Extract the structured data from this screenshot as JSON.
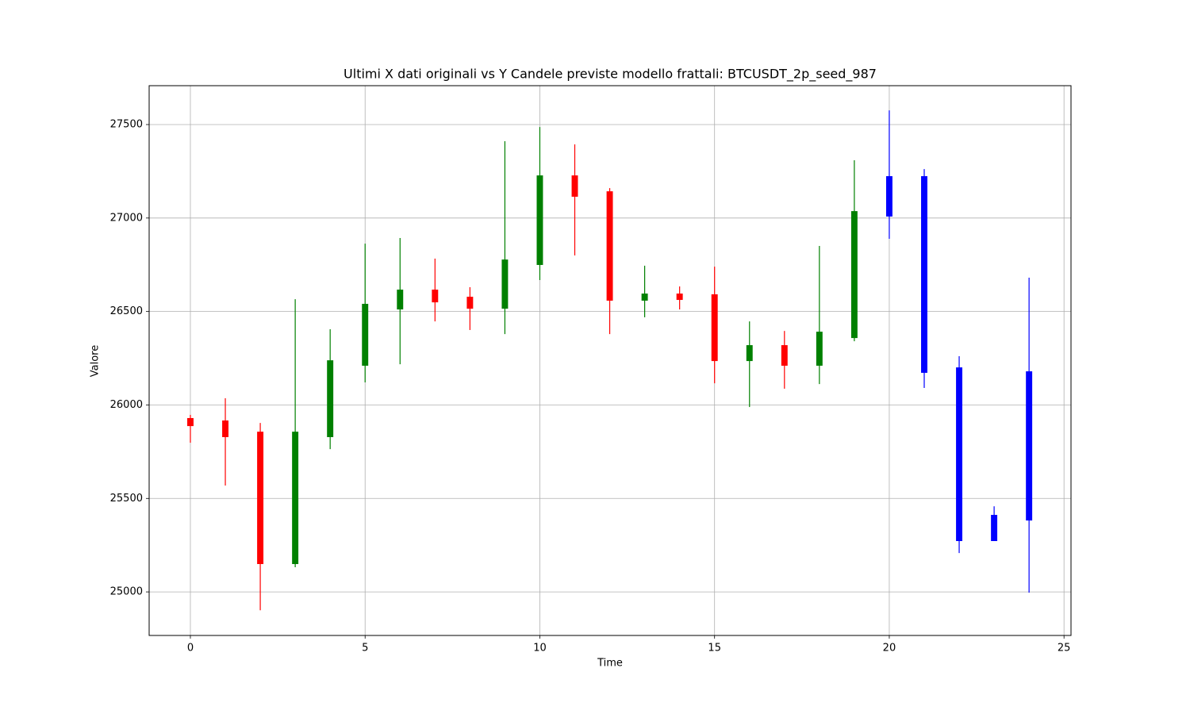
{
  "chart_data": {
    "type": "candlestick",
    "title": "Ultimi X dati originali vs Y Candele previste modello frattali: BTCUSDT_2p_seed_987",
    "x_label": "Time",
    "y_label": "Valore",
    "x": [
      0,
      1,
      2,
      3,
      4,
      5,
      6,
      7,
      8,
      9,
      10,
      11,
      12,
      13,
      14,
      15,
      16,
      17,
      18,
      19,
      20,
      21,
      22,
      23,
      24
    ],
    "open": [
      25930,
      25917,
      25857,
      25149,
      25828,
      26210,
      26511,
      26617,
      26579,
      26515,
      26749,
      27228,
      27143,
      26558,
      26596,
      26592,
      26235,
      26320,
      26210,
      26358,
      27008,
      27224,
      26201,
      25412,
      25382
    ],
    "high": [
      25947,
      26036,
      25904,
      26566,
      26405,
      26863,
      26893,
      26783,
      26630,
      27411,
      27487,
      27394,
      27160,
      26745,
      26634,
      26740,
      26447,
      26396,
      26851,
      27309,
      27576,
      27262,
      26261,
      25458,
      26681
    ],
    "low": [
      25798,
      25569,
      24902,
      25132,
      25764,
      26121,
      26218,
      26447,
      26401,
      26379,
      26668,
      26800,
      26379,
      26469,
      26511,
      26116,
      25989,
      26087,
      26112,
      26341,
      26889,
      26091,
      25208,
      25272,
      24996
    ],
    "close": [
      25887,
      25828,
      25149,
      25857,
      26239,
      26541,
      26617,
      26549,
      26515,
      26778,
      27228,
      27114,
      26558,
      26596,
      26562,
      26235,
      26320,
      26210,
      26392,
      27037,
      27224,
      26172,
      25272,
      25272,
      26180
    ],
    "colors": [
      "red",
      "red",
      "red",
      "green",
      "green",
      "green",
      "green",
      "red",
      "red",
      "green",
      "green",
      "red",
      "red",
      "green",
      "red",
      "red",
      "green",
      "red",
      "green",
      "green",
      "blue",
      "blue",
      "blue",
      "blue",
      "blue"
    ],
    "xlim": [
      -1.18,
      25.2
    ],
    "ylim": [
      24767,
      27708
    ],
    "xticks": [
      0,
      5,
      10,
      15,
      20,
      25
    ],
    "yticks": [
      25000,
      25500,
      26000,
      26500,
      27000,
      27500
    ],
    "grid": true
  }
}
